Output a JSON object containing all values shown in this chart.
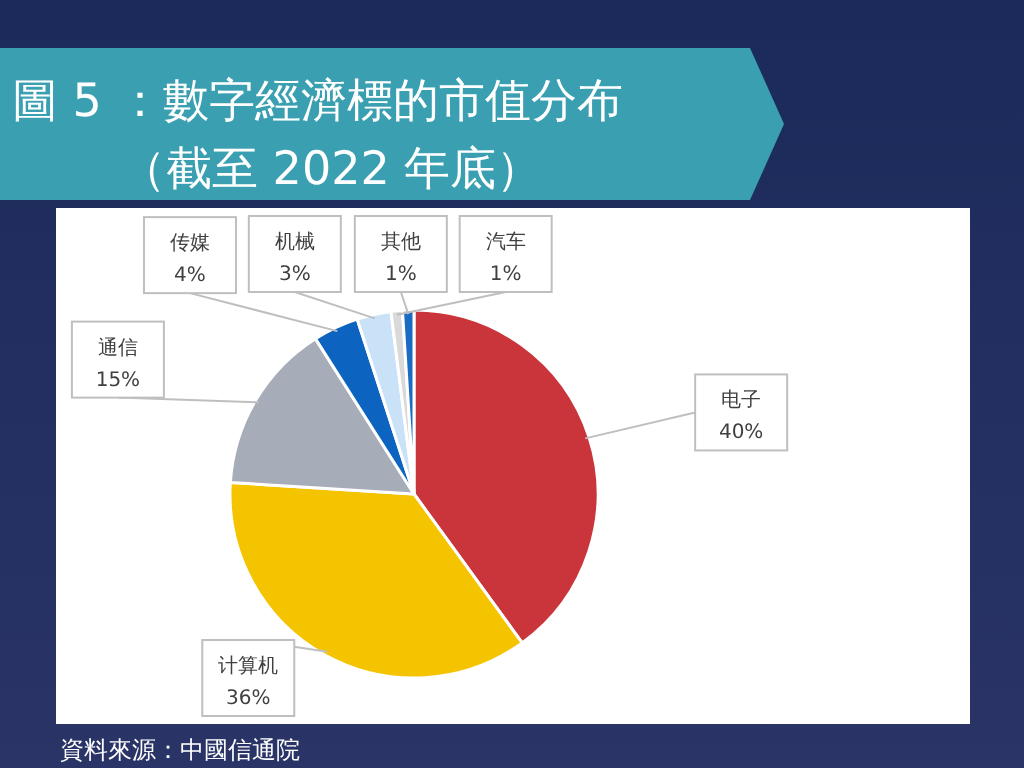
{
  "chart_data": {
    "type": "pie",
    "title": "圖 5 ：數字經濟標的市值分布",
    "subtitle": "（截至 2022 年底）",
    "categories": [
      "电子",
      "计算机",
      "通信",
      "传媒",
      "机械",
      "汽车",
      "其他"
    ],
    "values": [
      40,
      36,
      15,
      4,
      3,
      1,
      1
    ],
    "colors": [
      "#c9353a",
      "#f5c400",
      "#a6adb8",
      "#0c63c0",
      "#c9e2f8",
      "#d9d9d9",
      "#1a6bc4"
    ],
    "value_labels": [
      "40%",
      "36%",
      "15%",
      "4%",
      "3%",
      "1%",
      "1%"
    ],
    "annotations": [
      "資料來源：中國信通院"
    ]
  }
}
